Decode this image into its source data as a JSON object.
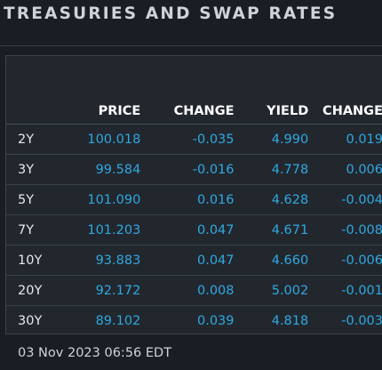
{
  "title": "TREASURIES AND SWAP RATES",
  "table": {
    "headers": [
      "PRICE",
      "CHANGE",
      "YIELD",
      "CHANGE"
    ],
    "rows": [
      {
        "tenor": "2Y",
        "price": "100.018",
        "price_change": "-0.035",
        "yield": "4.990",
        "yield_change": "0.019"
      },
      {
        "tenor": "3Y",
        "price": "99.584",
        "price_change": "-0.016",
        "yield": "4.778",
        "yield_change": "0.006"
      },
      {
        "tenor": "5Y",
        "price": "101.090",
        "price_change": "0.016",
        "yield": "4.628",
        "yield_change": "-0.004"
      },
      {
        "tenor": "7Y",
        "price": "101.203",
        "price_change": "0.047",
        "yield": "4.671",
        "yield_change": "-0.008"
      },
      {
        "tenor": "10Y",
        "price": "93.883",
        "price_change": "0.047",
        "yield": "4.660",
        "yield_change": "-0.006"
      },
      {
        "tenor": "20Y",
        "price": "92.172",
        "price_change": "0.008",
        "yield": "5.002",
        "yield_change": "-0.001"
      },
      {
        "tenor": "30Y",
        "price": "89.102",
        "price_change": "0.039",
        "yield": "4.818",
        "yield_change": "-0.003"
      }
    ]
  },
  "timestamp": "03 Nov 2023 06:56 EDT",
  "colors": {
    "background": "#1a1e24",
    "panel": "#22272e",
    "value_blue": "#2fa8e0",
    "header_white": "#ffffff",
    "text_light": "#cfd3d8"
  }
}
